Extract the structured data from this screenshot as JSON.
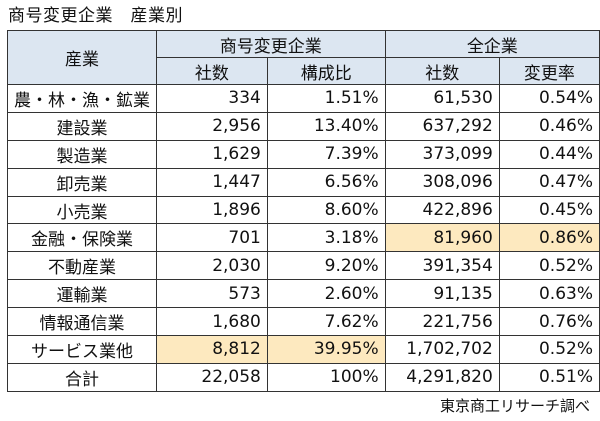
{
  "title": "商号変更企業　産業別",
  "header": {
    "industry": "産業",
    "group_change": "商号変更企業",
    "group_all": "全企業",
    "col_companies": "社数",
    "col_share": "構成比",
    "col_all_companies": "社数",
    "col_change_rate": "変更率"
  },
  "rows": [
    {
      "industry": "農・林・漁・鉱業",
      "companies": "334",
      "share": "1.51%",
      "all_companies": "61,530",
      "change_rate": "0.54%"
    },
    {
      "industry": "建設業",
      "companies": "2,956",
      "share": "13.40%",
      "all_companies": "637,292",
      "change_rate": "0.46%"
    },
    {
      "industry": "製造業",
      "companies": "1,629",
      "share": "7.39%",
      "all_companies": "373,099",
      "change_rate": "0.44%"
    },
    {
      "industry": "卸売業",
      "companies": "1,447",
      "share": "6.56%",
      "all_companies": "308,096",
      "change_rate": "0.47%"
    },
    {
      "industry": "小売業",
      "companies": "1,896",
      "share": "8.60%",
      "all_companies": "422,896",
      "change_rate": "0.45%"
    },
    {
      "industry": "金融・保険業",
      "companies": "701",
      "share": "3.18%",
      "all_companies": "81,960",
      "change_rate": "0.86%"
    },
    {
      "industry": "不動産業",
      "companies": "2,030",
      "share": "9.20%",
      "all_companies": "391,354",
      "change_rate": "0.52%"
    },
    {
      "industry": "運輸業",
      "companies": "573",
      "share": "2.60%",
      "all_companies": "91,135",
      "change_rate": "0.63%"
    },
    {
      "industry": "情報通信業",
      "companies": "1,680",
      "share": "7.62%",
      "all_companies": "221,756",
      "change_rate": "0.76%"
    },
    {
      "industry": "サービス業他",
      "companies": "8,812",
      "share": "39.95%",
      "all_companies": "1,702,702",
      "change_rate": "0.52%"
    },
    {
      "industry": "合計",
      "companies": "22,058",
      "share": "100%",
      "all_companies": "4,291,820",
      "change_rate": "0.51%"
    }
  ],
  "highlight_color": "#fde9bf",
  "header_color": "#dce6f1",
  "credit": "東京商工リサーチ調べ"
}
